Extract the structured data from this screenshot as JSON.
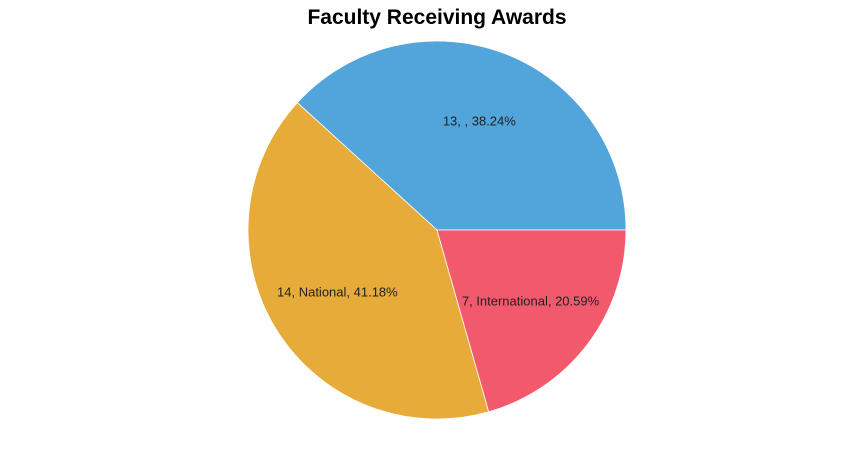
{
  "chart_data": {
    "type": "pie",
    "title": "Faculty Receiving Awards",
    "slices": [
      {
        "label": "",
        "value": 13,
        "percent": "38.24%",
        "color": "#52a5da",
        "text": "13, , 38.24%"
      },
      {
        "label": "National",
        "value": 14,
        "percent": "41.18%",
        "color": "#e6ab38",
        "text": "14, National, 41.18%"
      },
      {
        "label": "International",
        "value": 7,
        "percent": "20.59%",
        "color": "#f2596c",
        "text": "7, International, 20.59%"
      }
    ]
  }
}
